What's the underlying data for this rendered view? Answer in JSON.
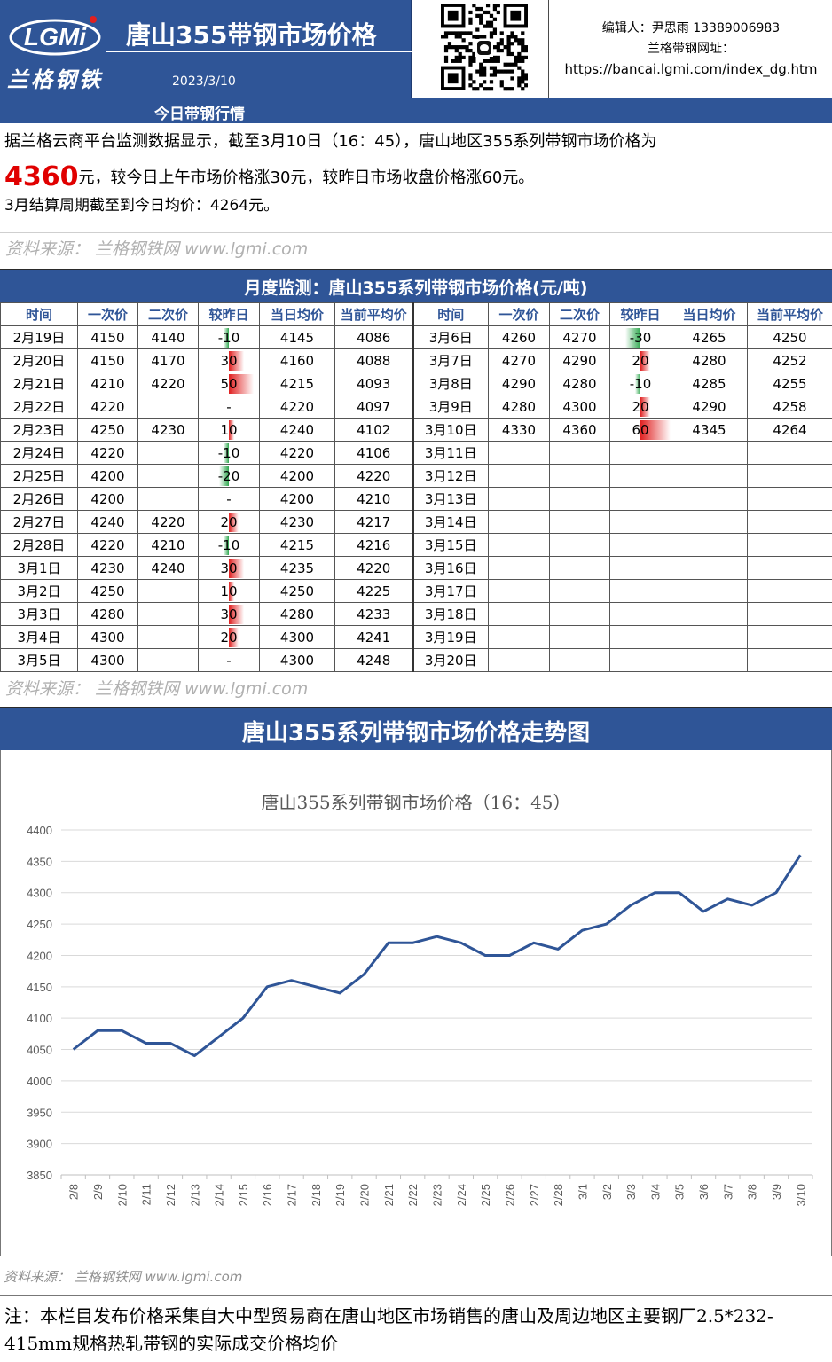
{
  "header": {
    "logo_text": "LGMi",
    "logo_cn": "兰格钢铁",
    "title": "唐山355带钢市场价格",
    "date": "2023/3/10",
    "editor": "编辑人：尹思雨 13389006983",
    "site_label": "兰格带钢网址：",
    "site_url": "https://bancai.lgmi.com/index_dg.htm"
  },
  "today": {
    "section_title": "今日带钢行情",
    "line1": "据兰格云商平台监测数据显示，截至3月10日（16：45），唐山地区355系列带钢市场价格为",
    "price": "4360",
    "line2_rest": "元，较今日上午市场价格涨30元，较昨日市场收盘价格涨60元。",
    "line3": "3月结算周期截至到今日均价：4264元。"
  },
  "source_text": "资料来源： 兰格钢铁网 www.lgmi.com",
  "source_text_small": "资料来源： 兰格钢铁网 www.lgmi.com",
  "monthly": {
    "section_title": "月度监测：唐山355系列带钢市场价格(元/吨)",
    "headers": [
      "时间",
      "一次价",
      "二次价",
      "较昨日",
      "当日均价",
      "当前平均价",
      "时间",
      "一次价",
      "二次价",
      "较昨日",
      "当日均价",
      "当前平均价"
    ],
    "left_rows": [
      {
        "date": "2月19日",
        "p1": "4150",
        "p2": "4140",
        "chg": "-10",
        "chg_val": -10,
        "avg": "4145",
        "cur": "4086"
      },
      {
        "date": "2月20日",
        "p1": "4150",
        "p2": "4170",
        "chg": "30",
        "chg_val": 30,
        "avg": "4160",
        "cur": "4088"
      },
      {
        "date": "2月21日",
        "p1": "4210",
        "p2": "4220",
        "chg": "50",
        "chg_val": 50,
        "avg": "4215",
        "cur": "4093"
      },
      {
        "date": "2月22日",
        "p1": "4220",
        "p2": "",
        "chg": "-",
        "chg_val": 0,
        "avg": "4220",
        "cur": "4097"
      },
      {
        "date": "2月23日",
        "p1": "4250",
        "p2": "4230",
        "chg": "10",
        "chg_val": 10,
        "avg": "4240",
        "cur": "4102"
      },
      {
        "date": "2月24日",
        "p1": "4220",
        "p2": "",
        "chg": "-10",
        "chg_val": -10,
        "avg": "4220",
        "cur": "4106"
      },
      {
        "date": "2月25日",
        "p1": "4200",
        "p2": "",
        "chg": "-20",
        "chg_val": -20,
        "avg": "4200",
        "cur": "4220"
      },
      {
        "date": "2月26日",
        "p1": "4200",
        "p2": "",
        "chg": "-",
        "chg_val": 0,
        "avg": "4200",
        "cur": "4210"
      },
      {
        "date": "2月27日",
        "p1": "4240",
        "p2": "4220",
        "chg": "20",
        "chg_val": 20,
        "avg": "4230",
        "cur": "4217"
      },
      {
        "date": "2月28日",
        "p1": "4220",
        "p2": "4210",
        "chg": "-10",
        "chg_val": -10,
        "avg": "4215",
        "cur": "4216"
      },
      {
        "date": "3月1日",
        "p1": "4230",
        "p2": "4240",
        "chg": "30",
        "chg_val": 30,
        "avg": "4235",
        "cur": "4220"
      },
      {
        "date": "3月2日",
        "p1": "4250",
        "p2": "",
        "chg": "10",
        "chg_val": 10,
        "avg": "4250",
        "cur": "4225"
      },
      {
        "date": "3月3日",
        "p1": "4280",
        "p2": "",
        "chg": "30",
        "chg_val": 30,
        "avg": "4280",
        "cur": "4233"
      },
      {
        "date": "3月4日",
        "p1": "4300",
        "p2": "",
        "chg": "20",
        "chg_val": 20,
        "avg": "4300",
        "cur": "4241"
      },
      {
        "date": "3月5日",
        "p1": "4300",
        "p2": "",
        "chg": "-",
        "chg_val": 0,
        "avg": "4300",
        "cur": "4248"
      }
    ],
    "right_rows": [
      {
        "date": "3月6日",
        "p1": "4260",
        "p2": "4270",
        "chg": "-30",
        "chg_val": -30,
        "avg": "4265",
        "cur": "4250"
      },
      {
        "date": "3月7日",
        "p1": "4270",
        "p2": "4290",
        "chg": "20",
        "chg_val": 20,
        "avg": "4280",
        "cur": "4252"
      },
      {
        "date": "3月8日",
        "p1": "4290",
        "p2": "4280",
        "chg": "-10",
        "chg_val": -10,
        "avg": "4285",
        "cur": "4255"
      },
      {
        "date": "3月9日",
        "p1": "4280",
        "p2": "4300",
        "chg": "20",
        "chg_val": 20,
        "avg": "4290",
        "cur": "4258"
      },
      {
        "date": "3月10日",
        "p1": "4330",
        "p2": "4360",
        "chg": "60",
        "chg_val": 60,
        "avg": "4345",
        "cur": "4264"
      },
      {
        "date": "3月11日",
        "p1": "",
        "p2": "",
        "chg": "",
        "chg_val": 0,
        "avg": "",
        "cur": ""
      },
      {
        "date": "3月12日",
        "p1": "",
        "p2": "",
        "chg": "",
        "chg_val": 0,
        "avg": "",
        "cur": ""
      },
      {
        "date": "3月13日",
        "p1": "",
        "p2": "",
        "chg": "",
        "chg_val": 0,
        "avg": "",
        "cur": ""
      },
      {
        "date": "3月14日",
        "p1": "",
        "p2": "",
        "chg": "",
        "chg_val": 0,
        "avg": "",
        "cur": ""
      },
      {
        "date": "3月15日",
        "p1": "",
        "p2": "",
        "chg": "",
        "chg_val": 0,
        "avg": "",
        "cur": ""
      },
      {
        "date": "3月16日",
        "p1": "",
        "p2": "",
        "chg": "",
        "chg_val": 0,
        "avg": "",
        "cur": ""
      },
      {
        "date": "3月17日",
        "p1": "",
        "p2": "",
        "chg": "",
        "chg_val": 0,
        "avg": "",
        "cur": ""
      },
      {
        "date": "3月18日",
        "p1": "",
        "p2": "",
        "chg": "",
        "chg_val": 0,
        "avg": "",
        "cur": ""
      },
      {
        "date": "3月19日",
        "p1": "",
        "p2": "",
        "chg": "",
        "chg_val": 0,
        "avg": "",
        "cur": ""
      },
      {
        "date": "3月20日",
        "p1": "",
        "p2": "",
        "chg": "",
        "chg_val": 0,
        "avg": "",
        "cur": ""
      }
    ],
    "change_colors": {
      "up": "#e02020",
      "down": "#2fa84f"
    }
  },
  "trend": {
    "section_title": "唐山355系列带钢市场价格走势图"
  },
  "chart_data": {
    "type": "line",
    "title": "唐山355系列带钢市场价格（16：45）",
    "xlabel": "",
    "ylabel": "",
    "categories": [
      "2/8",
      "2/9",
      "2/10",
      "2/11",
      "2/12",
      "2/13",
      "2/14",
      "2/15",
      "2/16",
      "2/17",
      "2/18",
      "2/19",
      "2/20",
      "2/21",
      "2/22",
      "2/23",
      "2/24",
      "2/25",
      "2/26",
      "2/27",
      "2/28",
      "3/1",
      "3/2",
      "3/3",
      "3/4",
      "3/5",
      "3/6",
      "3/7",
      "3/8",
      "3/9",
      "3/10"
    ],
    "values": [
      4050,
      4080,
      4080,
      4060,
      4060,
      4040,
      4070,
      4100,
      4150,
      4160,
      4150,
      4140,
      4170,
      4220,
      4220,
      4230,
      4220,
      4200,
      4200,
      4220,
      4210,
      4240,
      4250,
      4280,
      4300,
      4300,
      4270,
      4290,
      4280,
      4300,
      4360
    ],
    "ylim": [
      3850,
      4400
    ],
    "yticks": [
      3850,
      3900,
      3950,
      4000,
      4050,
      4100,
      4150,
      4200,
      4250,
      4300,
      4350,
      4400
    ],
    "grid": true,
    "line_color": "#2f5597"
  },
  "note": "注：本栏目发布价格采集自大中型贸易商在唐山地区市场销售的唐山及周边地区主要钢厂2.5*232-415mm规格热轧带钢的实际成交价格均价",
  "colors": {
    "brand": "#2f5597",
    "price_highlight": "#e00000"
  }
}
